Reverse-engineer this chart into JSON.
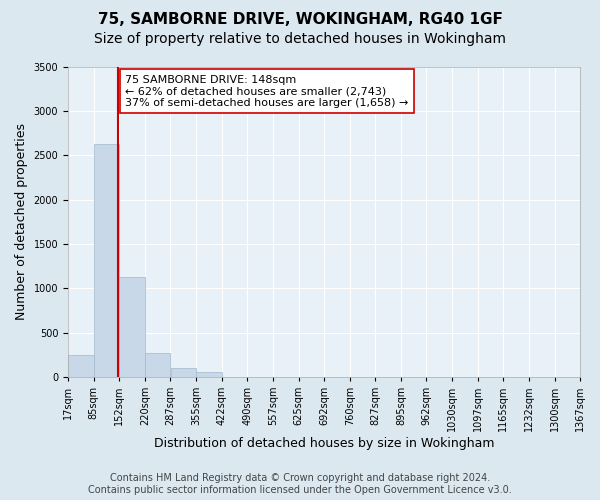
{
  "title": "75, SAMBORNE DRIVE, WOKINGHAM, RG40 1GF",
  "subtitle": "Size of property relative to detached houses in Wokingham",
  "xlabel": "Distribution of detached houses by size in Wokingham",
  "ylabel": "Number of detached properties",
  "bar_color": "#c8d8e8",
  "bar_edge_color": "#a0b8cc",
  "property_line_color": "#cc0000",
  "property_value": 148,
  "annotation_line1": "75 SAMBORNE DRIVE: 148sqm",
  "annotation_line2": "← 62% of detached houses are smaller (2,743)",
  "annotation_line3": "37% of semi-detached houses are larger (1,658) →",
  "annotation_box_color": "#ffffff",
  "annotation_box_edge": "#cc0000",
  "bin_edges": [
    17,
    85,
    152,
    220,
    287,
    355,
    422,
    490,
    557,
    625,
    692,
    760,
    827,
    895,
    962,
    1030,
    1097,
    1165,
    1232,
    1300,
    1367
  ],
  "tick_labels": [
    "17sqm",
    "85sqm",
    "152sqm",
    "220sqm",
    "287sqm",
    "355sqm",
    "422sqm",
    "490sqm",
    "557sqm",
    "625sqm",
    "692sqm",
    "760sqm",
    "827sqm",
    "895sqm",
    "962sqm",
    "1030sqm",
    "1097sqm",
    "1165sqm",
    "1232sqm",
    "1300sqm",
    "1367sqm"
  ],
  "bar_heights": [
    250,
    2630,
    1130,
    270,
    95,
    55,
    0,
    0,
    0,
    0,
    0,
    0,
    0,
    0,
    0,
    0,
    0,
    0,
    0,
    0
  ],
  "ylim": [
    0,
    3500
  ],
  "yticks": [
    0,
    500,
    1000,
    1500,
    2000,
    2500,
    3000,
    3500
  ],
  "background_color": "#dce8f0",
  "plot_bg_color": "#e8f0f8",
  "grid_color": "#ffffff",
  "footer_text": "Contains HM Land Registry data © Crown copyright and database right 2024.\nContains public sector information licensed under the Open Government Licence v3.0.",
  "title_fontsize": 11,
  "subtitle_fontsize": 10,
  "xlabel_fontsize": 9,
  "ylabel_fontsize": 9,
  "tick_fontsize": 7,
  "annotation_fontsize": 8,
  "footer_fontsize": 7
}
